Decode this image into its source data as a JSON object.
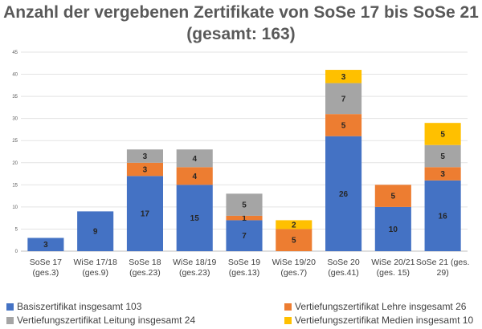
{
  "chart_data": {
    "type": "bar",
    "stacked": true,
    "title_line1": "Anzahl der vergebenen Zertifikate von SoSe 17 bis SoSe 21",
    "title_line2": "(gesamt: 163)",
    "categories": [
      [
        "SoSe 17",
        "(ges.3)"
      ],
      [
        "WiSe 17/18",
        "(ges.9)"
      ],
      [
        "SoSe 18",
        "(ges.23)"
      ],
      [
        "WiSe 18/19",
        "(ges.23)"
      ],
      [
        "SoSe 19",
        "(ges.13)"
      ],
      [
        "WiSe 19/20",
        "(ges.7)"
      ],
      [
        "SoSe 20",
        "(ges.41)"
      ],
      [
        "WiSe 20/21",
        "(ges. 15)"
      ],
      [
        "SoSe 21 (ges.",
        "29)"
      ]
    ],
    "ylim": [
      0,
      45
    ],
    "yticks": [
      0,
      5,
      10,
      15,
      20,
      25,
      30,
      35,
      40,
      45
    ],
    "grid": true,
    "legend_position": "bottom",
    "series": [
      {
        "name": "Basiszertifikat insgesamt 103",
        "color": "#4472C4",
        "label_color": "#262626",
        "values": [
          3,
          9,
          17,
          15,
          7,
          0,
          26,
          10,
          16
        ]
      },
      {
        "name": "Vertiefungszertifikat Lehre insgesamt 26",
        "color": "#ED7D31",
        "label_color": "#262626",
        "values": [
          0,
          0,
          3,
          4,
          1,
          5,
          5,
          5,
          3
        ]
      },
      {
        "name": "Vertiefungszertifikat Leitung insgesamt 24",
        "color": "#A5A5A5",
        "label_color": "#262626",
        "values": [
          0,
          0,
          3,
          4,
          5,
          0,
          7,
          0,
          5
        ]
      },
      {
        "name": "Vertiefungszertifikat Medien insgesamt 10",
        "color": "#FFC000",
        "label_color": "#262626",
        "values": [
          0,
          0,
          0,
          0,
          0,
          2,
          3,
          0,
          5
        ]
      }
    ]
  }
}
